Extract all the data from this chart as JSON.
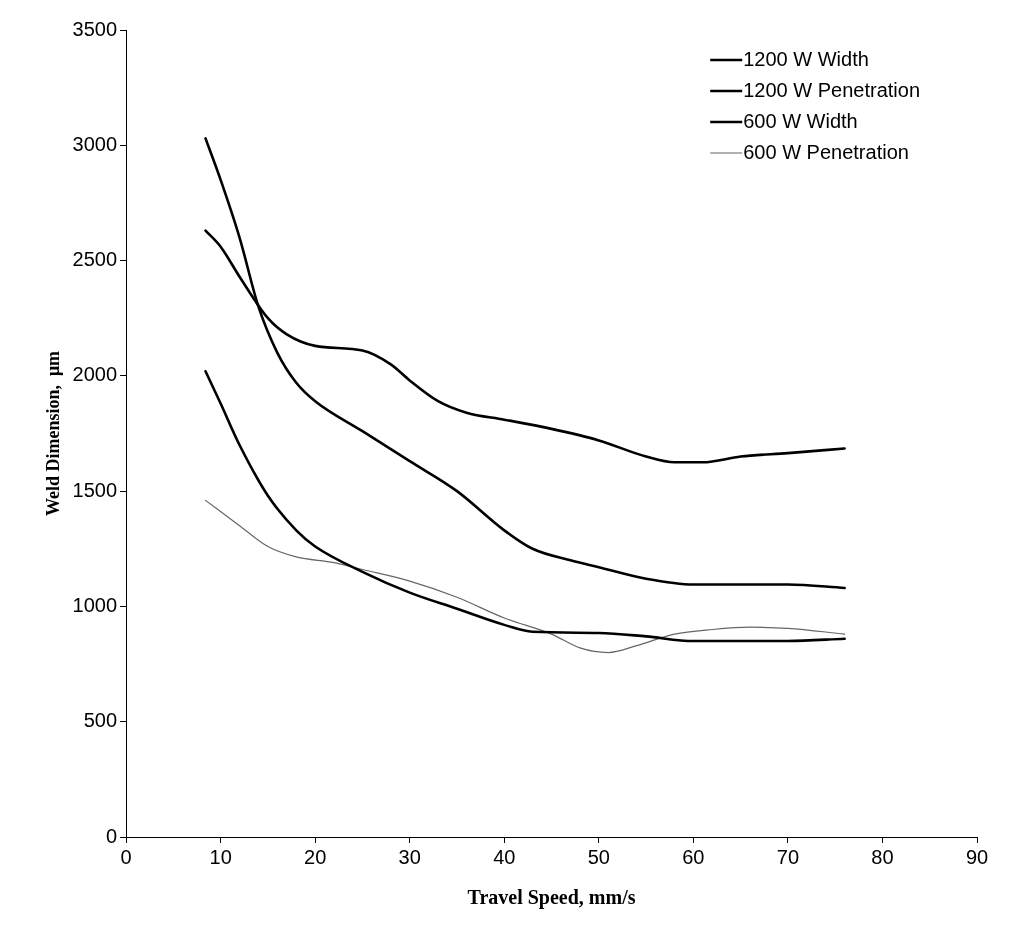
{
  "chart_data": {
    "type": "line",
    "xlabel": "Travel Speed, mm/s",
    "ylabel": "Weld Dimension,  μm",
    "xlim": [
      0,
      90
    ],
    "xticks": [
      0,
      10,
      20,
      30,
      40,
      50,
      60,
      70,
      80,
      90
    ],
    "ylim": [
      0,
      3500
    ],
    "yticks": [
      0,
      500,
      1000,
      1500,
      2000,
      2500,
      3000,
      3500
    ],
    "grid": false,
    "legend": "top right",
    "marker": "none",
    "line_style": "solid",
    "series": [
      {
        "name": "1200 W Width",
        "color": "#000000",
        "x": [
          8.4,
          10,
          12,
          15,
          17,
          20,
          25,
          28,
          30,
          33,
          36,
          40,
          45,
          50,
          55,
          58,
          61,
          65,
          70,
          76
        ],
        "values": [
          2630,
          2560,
          2430,
          2250,
          2180,
          2130,
          2110,
          2050,
          1980,
          1890,
          1840,
          1810,
          1770,
          1720,
          1650,
          1625,
          1625,
          1650,
          1665,
          1685
        ]
      },
      {
        "name": "1200 W Penetration",
        "color": "#000000",
        "x": [
          8.4,
          10,
          12,
          14,
          16,
          18,
          20,
          25,
          30,
          35,
          40,
          43,
          47,
          50,
          55,
          60,
          65,
          70,
          76
        ],
        "values": [
          3030,
          2850,
          2600,
          2300,
          2100,
          1970,
          1890,
          1760,
          1630,
          1500,
          1330,
          1250,
          1200,
          1170,
          1120,
          1095,
          1095,
          1095,
          1080
        ]
      },
      {
        "name": "600 W Width",
        "color": "#000000",
        "x": [
          8.4,
          10,
          12,
          15,
          18,
          20,
          25,
          30,
          35,
          40,
          43,
          50,
          55,
          60,
          65,
          70,
          76
        ],
        "values": [
          2020,
          1880,
          1700,
          1480,
          1330,
          1260,
          1150,
          1060,
          990,
          920,
          890,
          885,
          870,
          850,
          850,
          850,
          860
        ]
      },
      {
        "name": "600 W Penetration",
        "color": "#666666",
        "x": [
          8.4,
          12,
          15,
          18,
          22,
          25,
          30,
          35,
          40,
          45,
          48,
          51,
          54,
          58,
          62,
          66,
          70,
          76
        ],
        "values": [
          1460,
          1350,
          1260,
          1215,
          1190,
          1160,
          1110,
          1040,
          950,
          880,
          820,
          800,
          830,
          880,
          900,
          910,
          905,
          880
        ]
      }
    ]
  }
}
